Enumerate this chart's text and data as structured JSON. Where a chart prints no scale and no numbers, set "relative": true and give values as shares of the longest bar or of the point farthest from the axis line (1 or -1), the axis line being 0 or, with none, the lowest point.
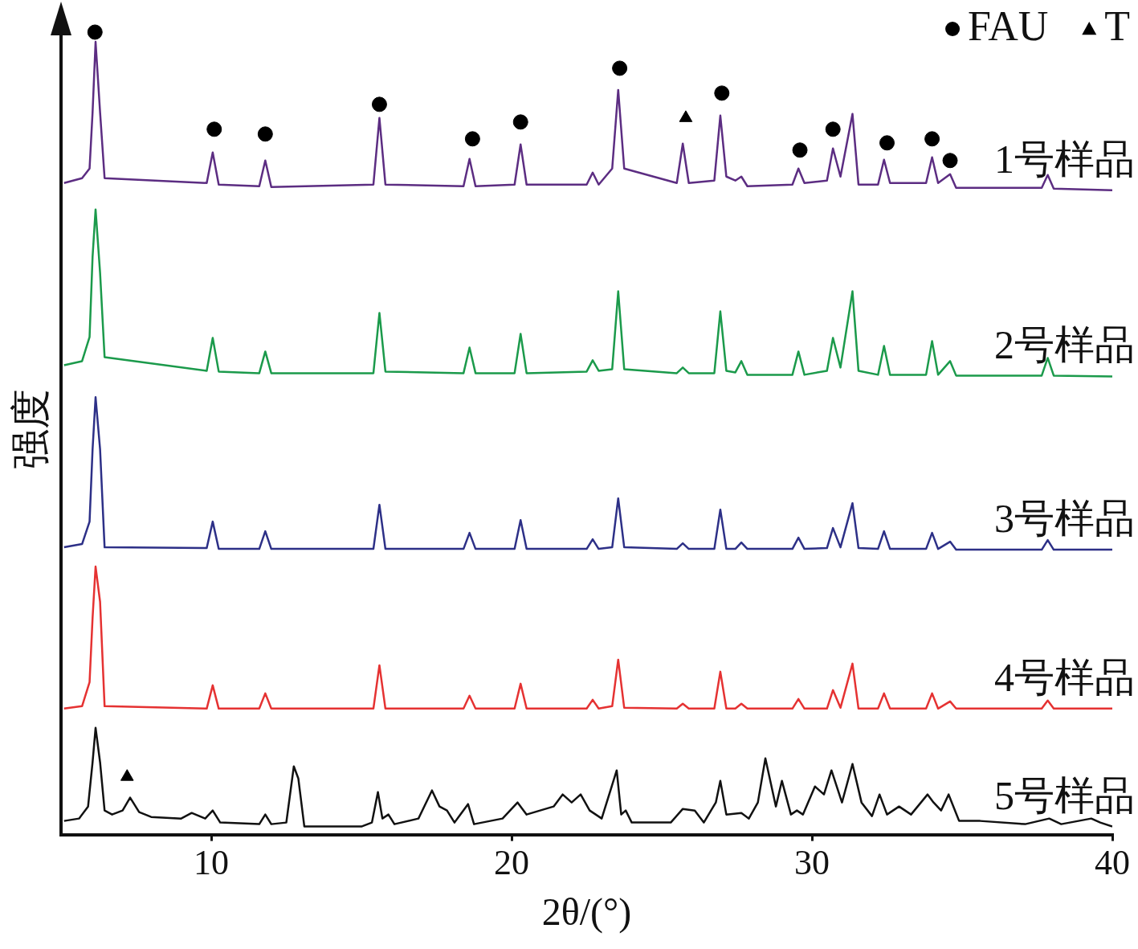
{
  "chart_data": {
    "type": "line",
    "relative": true,
    "xlabel": "2θ/(°)",
    "ylabel": "强度",
    "xlim": [
      5,
      40
    ],
    "xticks": [
      10,
      20,
      30,
      40
    ],
    "grid": false,
    "legend": "top right",
    "marker": "none",
    "line_style": "solid",
    "series": [
      {
        "name": "1号样品",
        "color": "#5c2d82",
        "x": [
          5.1,
          5.7,
          5.95,
          6.05,
          6.15,
          6.3,
          6.45,
          9.85,
          10.05,
          10.25,
          11.6,
          11.8,
          12.0,
          15.4,
          15.6,
          15.8,
          18.4,
          18.6,
          18.8,
          20.1,
          20.3,
          20.5,
          22.5,
          22.7,
          22.9,
          23.35,
          23.55,
          23.75,
          25.5,
          25.7,
          25.9,
          26.75,
          26.95,
          27.15,
          27.45,
          27.65,
          27.85,
          29.35,
          29.55,
          29.75,
          30.5,
          30.7,
          30.95,
          31.35,
          31.55,
          32.2,
          32.4,
          32.6,
          33.8,
          34.0,
          34.2,
          34.6,
          34.8,
          37.65,
          37.85,
          38.05,
          40
        ],
        "values": [
          0.812,
          0.818,
          0.83,
          0.9,
          0.988,
          0.9,
          0.818,
          0.812,
          0.85,
          0.81,
          0.808,
          0.84,
          0.807,
          0.81,
          0.893,
          0.81,
          0.808,
          0.842,
          0.808,
          0.81,
          0.86,
          0.81,
          0.81,
          0.825,
          0.81,
          0.83,
          0.928,
          0.83,
          0.812,
          0.861,
          0.812,
          0.815,
          0.896,
          0.82,
          0.815,
          0.82,
          0.808,
          0.81,
          0.83,
          0.812,
          0.815,
          0.855,
          0.82,
          0.898,
          0.81,
          0.81,
          0.841,
          0.812,
          0.812,
          0.844,
          0.812,
          0.823,
          0.806,
          0.806,
          0.822,
          0.805,
          0.803
        ]
      },
      {
        "name": "2号样品",
        "color": "#1b9a4b",
        "x": [
          5.1,
          5.7,
          5.95,
          6.05,
          6.15,
          6.3,
          6.45,
          9.85,
          10.05,
          10.25,
          11.6,
          11.8,
          12.0,
          15.4,
          15.6,
          15.8,
          18.4,
          18.6,
          18.8,
          20.1,
          20.3,
          20.5,
          22.5,
          22.7,
          22.9,
          23.35,
          23.55,
          23.75,
          25.5,
          25.7,
          25.9,
          26.75,
          26.95,
          27.15,
          27.45,
          27.65,
          27.85,
          29.35,
          29.55,
          29.75,
          30.5,
          30.7,
          30.95,
          31.35,
          31.55,
          32.2,
          32.4,
          32.6,
          33.8,
          34.0,
          34.2,
          34.6,
          34.8,
          37.65,
          37.85,
          38.05,
          40
        ],
        "values": [
          0.585,
          0.59,
          0.62,
          0.72,
          0.779,
          0.7,
          0.595,
          0.578,
          0.619,
          0.577,
          0.575,
          0.602,
          0.575,
          0.575,
          0.65,
          0.577,
          0.575,
          0.607,
          0.575,
          0.575,
          0.624,
          0.575,
          0.577,
          0.591,
          0.578,
          0.58,
          0.677,
          0.58,
          0.575,
          0.582,
          0.575,
          0.575,
          0.652,
          0.578,
          0.576,
          0.59,
          0.573,
          0.573,
          0.602,
          0.573,
          0.578,
          0.619,
          0.582,
          0.677,
          0.578,
          0.573,
          0.609,
          0.573,
          0.573,
          0.615,
          0.573,
          0.59,
          0.572,
          0.572,
          0.594,
          0.572,
          0.571
        ]
      },
      {
        "name": "3号样品",
        "color": "#2d3087",
        "x": [
          5.1,
          5.7,
          5.95,
          6.05,
          6.15,
          6.3,
          6.45,
          9.85,
          10.05,
          10.25,
          11.6,
          11.8,
          12.0,
          15.4,
          15.6,
          15.8,
          18.4,
          18.6,
          18.8,
          20.1,
          20.3,
          20.5,
          22.5,
          22.7,
          22.9,
          23.35,
          23.55,
          23.75,
          25.5,
          25.7,
          25.9,
          26.75,
          26.95,
          27.15,
          27.45,
          27.65,
          27.85,
          29.35,
          29.55,
          29.75,
          30.5,
          30.7,
          30.95,
          31.35,
          31.55,
          32.2,
          32.4,
          32.6,
          33.8,
          34.0,
          34.2,
          34.6,
          34.8,
          37.65,
          37.85,
          38.05,
          40
        ],
        "values": [
          0.358,
          0.362,
          0.39,
          0.48,
          0.545,
          0.48,
          0.358,
          0.357,
          0.39,
          0.356,
          0.356,
          0.378,
          0.356,
          0.356,
          0.411,
          0.356,
          0.356,
          0.376,
          0.356,
          0.356,
          0.392,
          0.356,
          0.356,
          0.368,
          0.356,
          0.358,
          0.419,
          0.358,
          0.356,
          0.363,
          0.356,
          0.356,
          0.405,
          0.356,
          0.356,
          0.364,
          0.356,
          0.356,
          0.37,
          0.356,
          0.357,
          0.382,
          0.358,
          0.413,
          0.357,
          0.356,
          0.378,
          0.356,
          0.356,
          0.376,
          0.356,
          0.365,
          0.355,
          0.355,
          0.367,
          0.355,
          0.355
        ]
      },
      {
        "name": "4号样品",
        "color": "#e53232",
        "x": [
          5.1,
          5.7,
          5.95,
          6.05,
          6.15,
          6.3,
          6.45,
          9.85,
          10.05,
          10.25,
          11.6,
          11.8,
          12.0,
          15.4,
          15.6,
          15.8,
          18.4,
          18.6,
          18.8,
          20.1,
          20.3,
          20.5,
          22.5,
          22.7,
          22.9,
          23.35,
          23.55,
          23.75,
          25.5,
          25.7,
          25.9,
          26.75,
          26.95,
          27.15,
          27.45,
          27.65,
          27.85,
          29.35,
          29.55,
          29.75,
          30.5,
          30.7,
          30.95,
          31.35,
          31.55,
          32.2,
          32.4,
          32.6,
          33.8,
          34.0,
          34.2,
          34.6,
          34.8,
          37.65,
          37.85,
          38.05,
          40
        ],
        "values": [
          0.157,
          0.16,
          0.19,
          0.27,
          0.334,
          0.29,
          0.16,
          0.157,
          0.186,
          0.157,
          0.157,
          0.176,
          0.157,
          0.157,
          0.211,
          0.157,
          0.157,
          0.173,
          0.157,
          0.157,
          0.188,
          0.157,
          0.157,
          0.168,
          0.157,
          0.16,
          0.218,
          0.158,
          0.157,
          0.163,
          0.157,
          0.157,
          0.203,
          0.157,
          0.157,
          0.163,
          0.157,
          0.157,
          0.169,
          0.157,
          0.157,
          0.18,
          0.158,
          0.213,
          0.157,
          0.157,
          0.176,
          0.157,
          0.157,
          0.176,
          0.157,
          0.166,
          0.157,
          0.157,
          0.167,
          0.157,
          0.157
        ]
      },
      {
        "name": "5号样品",
        "color": "#111111",
        "x": [
          5.1,
          5.6,
          5.9,
          6.05,
          6.15,
          6.3,
          6.45,
          6.7,
          7.05,
          7.3,
          7.6,
          8.0,
          9.0,
          9.35,
          9.8,
          10.05,
          10.3,
          11.6,
          11.8,
          12.0,
          12.5,
          12.75,
          12.9,
          13.1,
          15.0,
          15.35,
          15.55,
          15.7,
          15.9,
          16.1,
          16.9,
          17.35,
          17.6,
          17.85,
          18.1,
          18.55,
          18.75,
          19.7,
          20.2,
          20.5,
          21.4,
          21.7,
          22.0,
          22.3,
          22.6,
          23.0,
          23.5,
          23.65,
          23.8,
          24.0,
          25.3,
          25.7,
          26.1,
          26.4,
          26.8,
          26.95,
          27.15,
          27.65,
          27.9,
          28.2,
          28.45,
          28.8,
          29.0,
          29.3,
          29.5,
          29.7,
          30.1,
          30.4,
          30.65,
          31.0,
          31.35,
          31.65,
          32.0,
          32.25,
          32.5,
          32.9,
          33.3,
          33.85,
          34.05,
          34.3,
          34.55,
          34.9,
          35.6,
          37.1,
          37.9,
          38.3,
          39.3,
          39.6,
          40
        ],
        "values": [
          0.017,
          0.02,
          0.035,
          0.09,
          0.133,
          0.09,
          0.03,
          0.025,
          0.03,
          0.046,
          0.028,
          0.022,
          0.02,
          0.027,
          0.02,
          0.03,
          0.015,
          0.013,
          0.025,
          0.013,
          0.015,
          0.085,
          0.07,
          0.01,
          0.01,
          0.015,
          0.053,
          0.02,
          0.025,
          0.013,
          0.02,
          0.055,
          0.035,
          0.03,
          0.015,
          0.038,
          0.013,
          0.02,
          0.04,
          0.025,
          0.035,
          0.05,
          0.04,
          0.05,
          0.03,
          0.02,
          0.08,
          0.025,
          0.03,
          0.015,
          0.015,
          0.032,
          0.03,
          0.015,
          0.04,
          0.067,
          0.025,
          0.027,
          0.02,
          0.04,
          0.095,
          0.035,
          0.067,
          0.025,
          0.03,
          0.025,
          0.06,
          0.05,
          0.08,
          0.04,
          0.088,
          0.04,
          0.023,
          0.05,
          0.025,
          0.035,
          0.025,
          0.05,
          0.04,
          0.03,
          0.05,
          0.017,
          0.017,
          0.013,
          0.02,
          0.013,
          0.02,
          0.015,
          0.01
        ]
      },
      {
        "name": "FAU",
        "type": "scatter",
        "marker": "circle",
        "color": "#000000",
        "x": [
          6.13,
          10.1,
          11.8,
          15.6,
          18.7,
          20.3,
          23.6,
          27.0,
          29.6,
          30.7,
          32.5,
          34.0,
          34.6
        ],
        "values": [
          1.0,
          0.879,
          0.873,
          0.91,
          0.867,
          0.888,
          0.955,
          0.924,
          0.853,
          0.879,
          0.862,
          0.867,
          0.84
        ]
      },
      {
        "name": "T",
        "type": "scatter",
        "marker": "triangle",
        "color": "#000000",
        "x": [
          7.2,
          25.8
        ],
        "values": [
          0.072,
          0.893
        ]
      }
    ]
  }
}
